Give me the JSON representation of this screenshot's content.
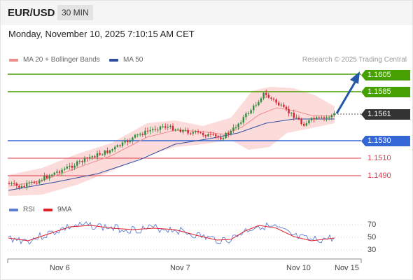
{
  "header": {
    "symbol": "EUR/USD",
    "interval": "30 MIN"
  },
  "datetime": "Monday, November 10, 2025 7:10:15 AM CET",
  "legend": {
    "ma20_label": "MA 20 + Bollinger Bands",
    "ma50_label": "MA 50",
    "credit": "Research © 2025 Trading Central",
    "colors": {
      "ma20": "#f08c8c",
      "ma50": "#2f4f9e"
    }
  },
  "levels": [
    {
      "price": "1.1605",
      "kind": "resistance",
      "color": "#46a000"
    },
    {
      "price": "1.1585",
      "kind": "resistance",
      "color": "#46a000"
    },
    {
      "price": "1.1561",
      "kind": "last-price",
      "color": "#333333"
    },
    {
      "price": "1.1530",
      "kind": "pivot",
      "color": "#3566d6"
    },
    {
      "price": "1.1510",
      "kind": "support",
      "color": "#e0384a"
    },
    {
      "price": "1.1490",
      "kind": "support",
      "color": "#e0384a"
    }
  ],
  "rsi_legend": {
    "rsi_label": "RSI",
    "ma_label": "9MA",
    "colors": {
      "rsi": "#5b7fd6",
      "ma": "#e0202a"
    }
  },
  "rsi_ticks": [
    "70",
    "50",
    "30"
  ],
  "x_axis": [
    "Nov 6",
    "Nov 7",
    "Nov 10",
    "Nov 15"
  ],
  "colors": {
    "up": "#2e8b3a",
    "down": "#d6232d",
    "band": "#fbd5d5",
    "arrow": "#2457a6"
  }
}
